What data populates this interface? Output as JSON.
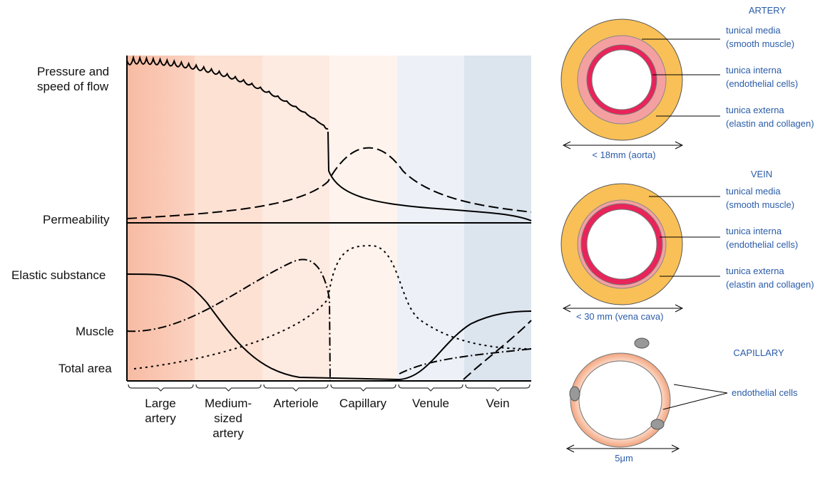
{
  "chart": {
    "row_labels": [
      "Pressure and\nspeed of flow",
      "Permeability",
      "Elastic substance",
      "Muscle",
      "Total area"
    ],
    "columns": [
      "Large\nartery",
      "Medium-\nsized\nartery",
      "Arteriole",
      "Capillary",
      "Venule",
      "Vein"
    ]
  },
  "artery": {
    "title": "ARTERY",
    "layers": [
      "tunical media\n(smooth muscle)",
      "tunica interna\n(endothelial cells)",
      "tunica externa\n(elastin and collagen)"
    ],
    "size": "< 18mm (aorta)"
  },
  "vein": {
    "title": "VEIN",
    "layers": [
      "tunical media\n(smooth muscle)",
      "tunica interna\n(endothelial cells)",
      "tunica externa\n(elastin and collagen)"
    ],
    "size": "< 30 mm (vena cava)"
  },
  "capillary": {
    "title": "CAPILLARY",
    "layer": "endothelial cells",
    "size": "5μm"
  }
}
